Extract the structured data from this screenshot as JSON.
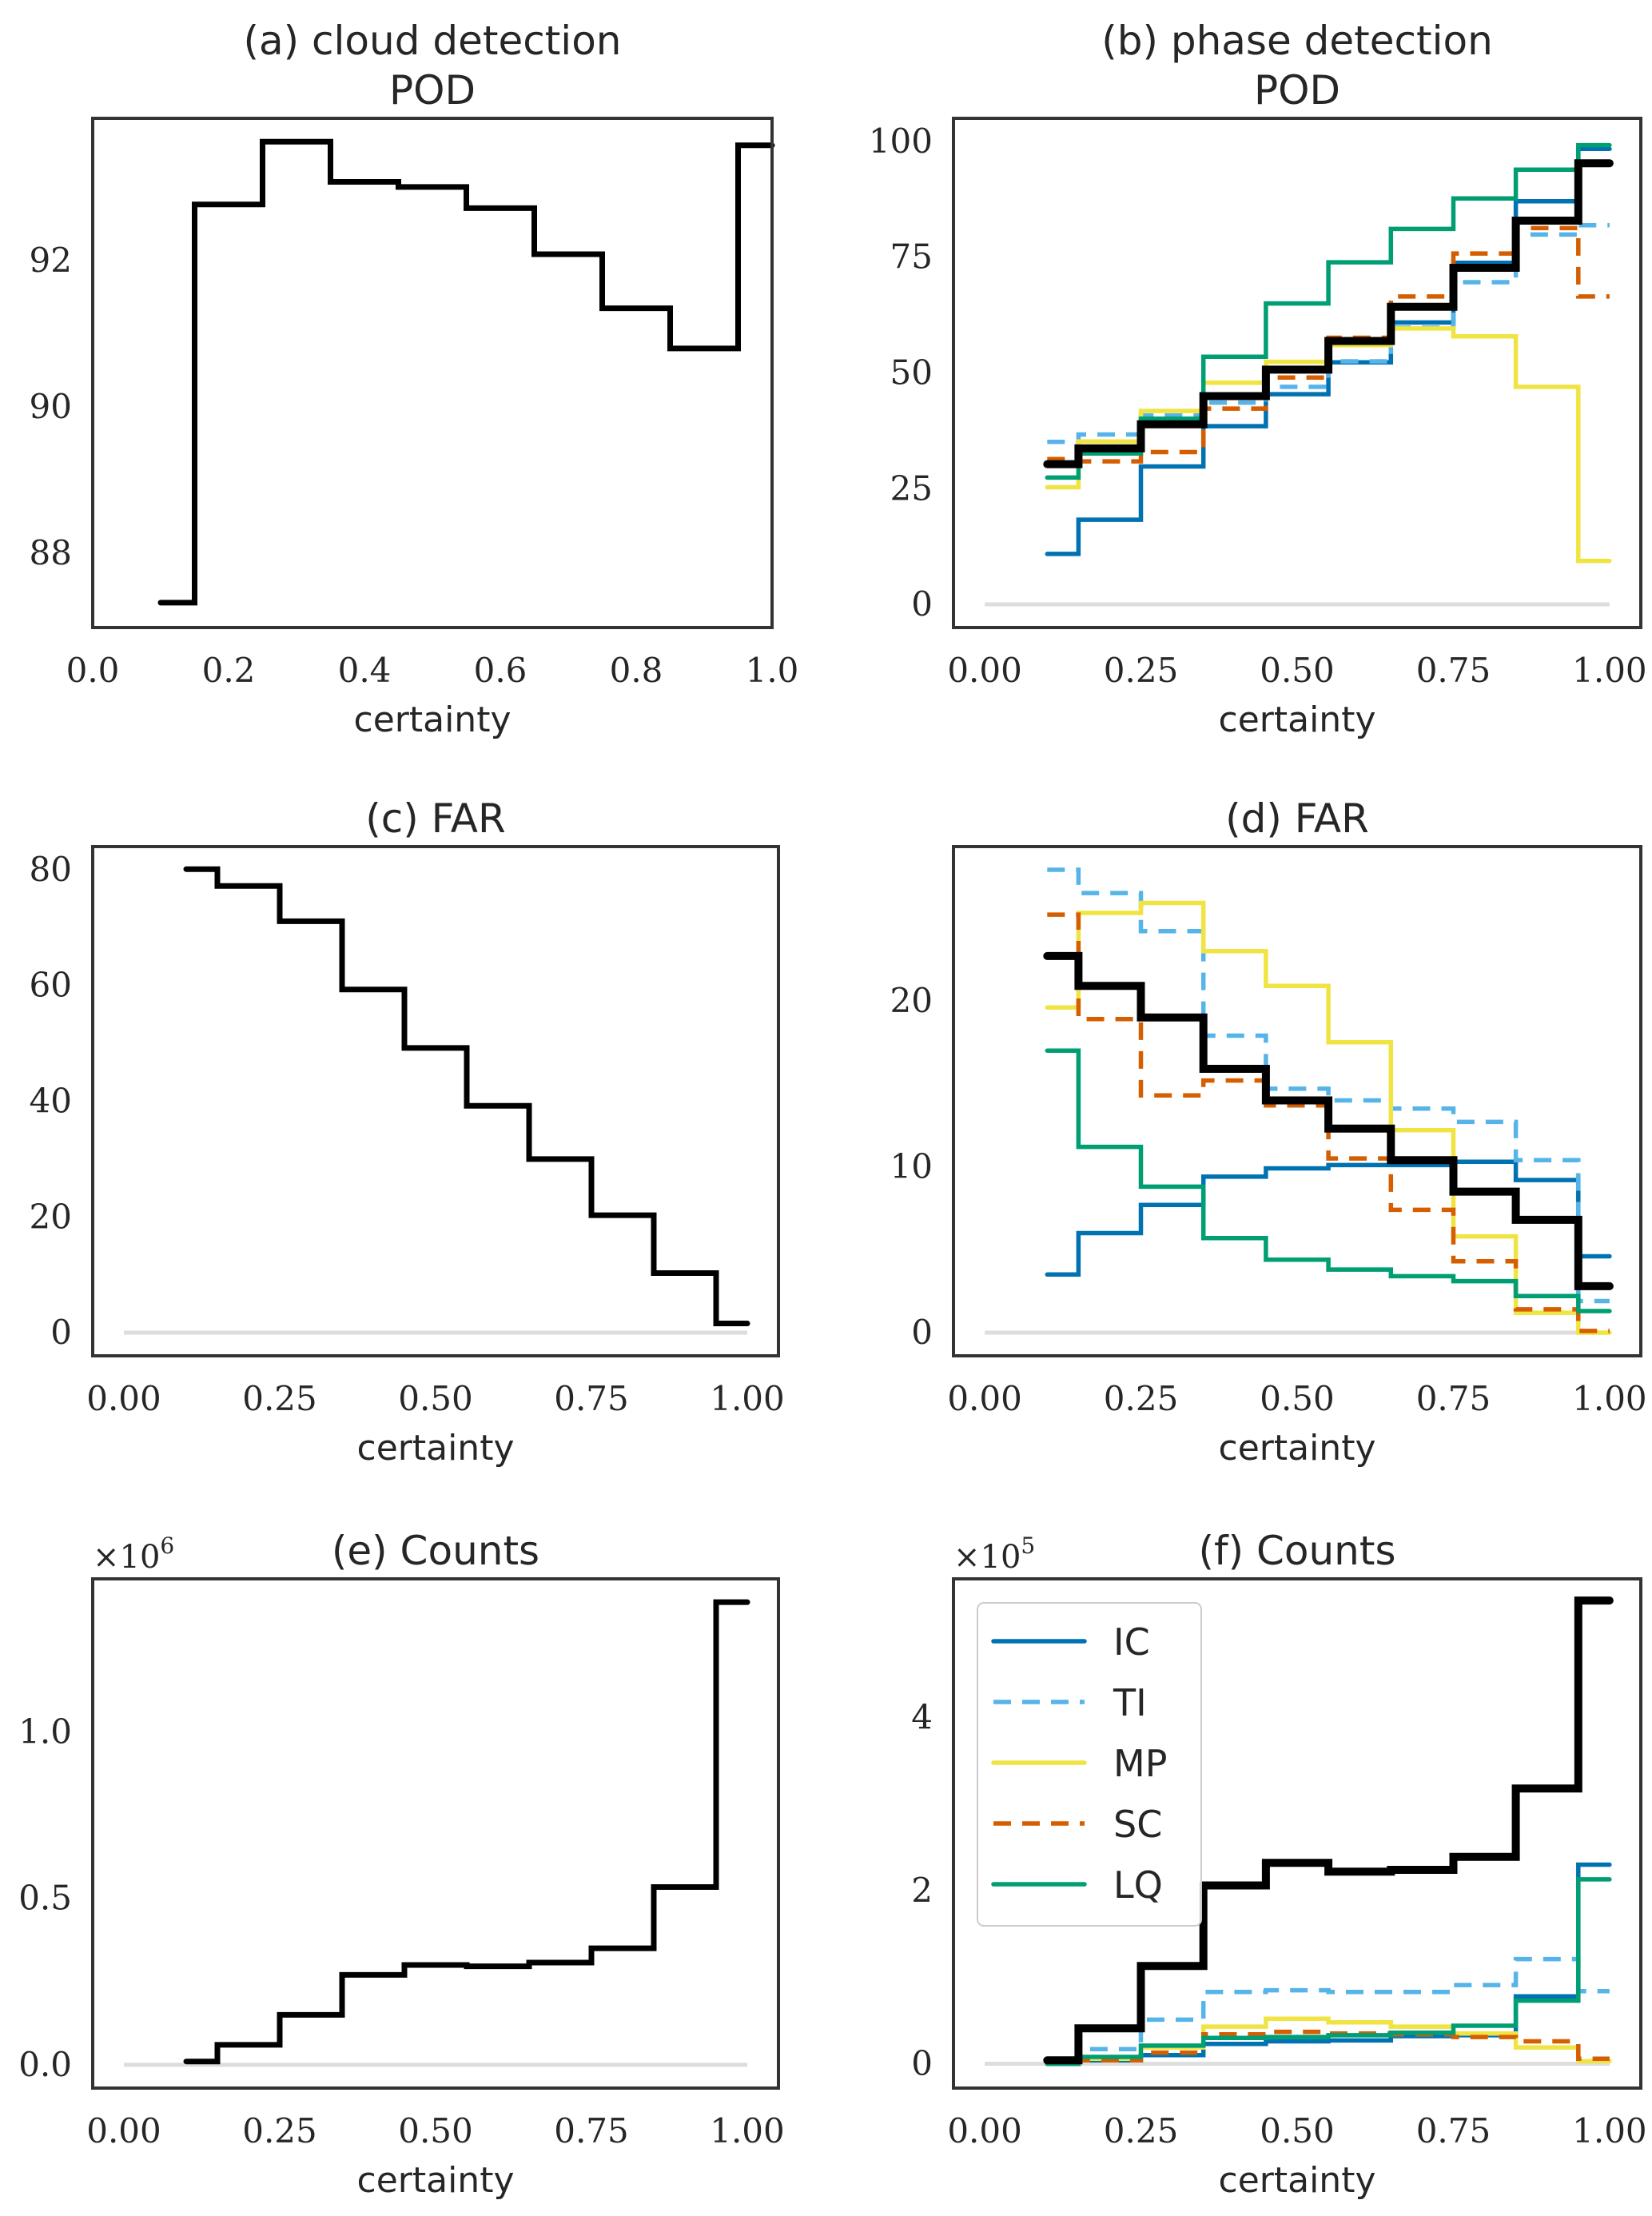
{
  "figure": {
    "x_tick_labels_a": [
      "0.0",
      "0.2",
      "0.4",
      "0.6",
      "0.8",
      "1.0"
    ],
    "x_tick_labels": [
      "0.00",
      "0.25",
      "0.50",
      "0.75",
      "1.00"
    ]
  },
  "series_styles": {
    "All": {
      "color": "#000000",
      "dash": "solid"
    },
    "IC": {
      "color": "#0072B2",
      "dash": "solid"
    },
    "TI": {
      "color": "#56B4E9",
      "dash": "dashed"
    },
    "MP": {
      "color": "#F0E442",
      "dash": "solid"
    },
    "SC": {
      "color": "#D55E00",
      "dash": "dashed"
    },
    "LQ": {
      "color": "#009E73",
      "dash": "solid"
    },
    "zero_line": {
      "color": "#DDDDDD"
    }
  },
  "legend": {
    "placement": "upper-left of panel (f)",
    "entries": [
      "IC",
      "TI",
      "MP",
      "SC",
      "LQ"
    ]
  },
  "chart_data": [
    {
      "id": "a",
      "type": "line",
      "step": "post",
      "title": "(a) cloud detection\nPOD",
      "title_lines": [
        "(a) cloud detection",
        "POD"
      ],
      "xlabel": "certainty",
      "ylabel": "",
      "xlim": [
        0.0,
        1.0
      ],
      "ylim": [
        86.98,
        93.95
      ],
      "xticks": [
        0.0,
        0.2,
        0.4,
        0.6,
        0.8,
        1.0
      ],
      "xtick_labels": [
        "0.0",
        "0.2",
        "0.4",
        "0.6",
        "0.8",
        "1.0"
      ],
      "yticks": [
        88,
        90,
        92
      ],
      "ytick_labels": [
        "88",
        "90",
        "92"
      ],
      "grid": false,
      "zero_line": false,
      "x": [
        0.1,
        0.15,
        0.25,
        0.35,
        0.45,
        0.55,
        0.65,
        0.75,
        0.85,
        0.95,
        1.0
      ],
      "series": [
        {
          "name": "All",
          "values": [
            87.32,
            92.77,
            93.63,
            93.08,
            93.01,
            92.72,
            92.09,
            91.35,
            90.8,
            93.58
          ]
        }
      ]
    },
    {
      "id": "b",
      "type": "line",
      "step": "post",
      "title": "(b) phase detection\nPOD",
      "title_lines": [
        "(b) phase detection",
        "POD"
      ],
      "xlabel": "certainty",
      "ylabel": "",
      "xlim": [
        -0.05,
        1.05
      ],
      "ylim": [
        -5,
        105
      ],
      "xticks": [
        0.0,
        0.25,
        0.5,
        0.75,
        1.0
      ],
      "xtick_labels": [
        "0.00",
        "0.25",
        "0.50",
        "0.75",
        "1.00"
      ],
      "yticks": [
        0,
        25,
        50,
        75,
        100
      ],
      "ytick_labels": [
        "0",
        "25",
        "50",
        "75",
        "100"
      ],
      "grid": false,
      "zero_line": true,
      "x": [
        0.1,
        0.15,
        0.25,
        0.35,
        0.45,
        0.55,
        0.65,
        0.75,
        0.85,
        0.95,
        1.0
      ],
      "series": [
        {
          "name": "IC",
          "values": [
            10.9,
            18.3,
            29.8,
            38.5,
            45.4,
            52.3,
            60.9,
            73.8,
            87.1,
            98.4
          ]
        },
        {
          "name": "TI",
          "values": [
            35.1,
            36.7,
            40.8,
            43.6,
            47.0,
            52.5,
            59.8,
            69.6,
            79.9,
            81.9
          ]
        },
        {
          "name": "MP",
          "values": [
            25.3,
            35.2,
            41.8,
            47.9,
            52.4,
            56.0,
            59.6,
            57.9,
            47.0,
            9.4
          ]
        },
        {
          "name": "SC",
          "values": [
            31.4,
            30.9,
            32.9,
            42.3,
            49.0,
            57.6,
            66.5,
            75.8,
            81.3,
            66.5
          ]
        },
        {
          "name": "LQ",
          "values": [
            27.4,
            32.6,
            40.1,
            53.5,
            65.0,
            73.9,
            81.1,
            87.7,
            93.9,
            99.2
          ]
        },
        {
          "name": "All",
          "values": [
            30.3,
            33.7,
            38.9,
            45.0,
            50.7,
            56.9,
            64.3,
            72.7,
            82.9,
            95.3
          ]
        }
      ]
    },
    {
      "id": "c",
      "type": "line",
      "step": "post",
      "title": "(c) FAR",
      "title_lines": [
        "(c) FAR"
      ],
      "xlabel": "certainty",
      "ylabel": "",
      "xlim": [
        -0.05,
        1.05
      ],
      "ylim": [
        -4,
        84
      ],
      "xticks": [
        0.0,
        0.25,
        0.5,
        0.75,
        1.0
      ],
      "xtick_labels": [
        "0.00",
        "0.25",
        "0.50",
        "0.75",
        "1.00"
      ],
      "yticks": [
        0,
        20,
        40,
        60,
        80
      ],
      "ytick_labels": [
        "0",
        "20",
        "40",
        "60",
        "80"
      ],
      "grid": false,
      "zero_line": true,
      "x": [
        0.1,
        0.15,
        0.25,
        0.35,
        0.45,
        0.55,
        0.65,
        0.75,
        0.85,
        0.95,
        1.0
      ],
      "series": [
        {
          "name": "All",
          "values": [
            80.1,
            77.2,
            71.1,
            59.3,
            49.2,
            39.2,
            30.0,
            20.3,
            10.3,
            1.6
          ]
        }
      ]
    },
    {
      "id": "d",
      "type": "line",
      "step": "post",
      "title": "(d) FAR",
      "title_lines": [
        "(d) FAR"
      ],
      "xlabel": "certainty",
      "ylabel": "",
      "xlim": [
        -0.05,
        1.05
      ],
      "ylim": [
        -1.4,
        29.3
      ],
      "xticks": [
        0.0,
        0.25,
        0.5,
        0.75,
        1.0
      ],
      "xtick_labels": [
        "0.00",
        "0.25",
        "0.50",
        "0.75",
        "1.00"
      ],
      "yticks": [
        0,
        10,
        20
      ],
      "ytick_labels": [
        "0",
        "10",
        "20"
      ],
      "grid": false,
      "zero_line": true,
      "x": [
        0.1,
        0.15,
        0.25,
        0.35,
        0.45,
        0.55,
        0.65,
        0.75,
        0.85,
        0.95,
        1.0
      ],
      "series": [
        {
          "name": "IC",
          "values": [
            3.5,
            6.0,
            7.7,
            9.4,
            9.9,
            10.1,
            10.1,
            10.3,
            9.2,
            4.6
          ]
        },
        {
          "name": "TI",
          "values": [
            27.9,
            26.5,
            24.2,
            17.9,
            14.7,
            14.0,
            13.5,
            12.7,
            10.4,
            1.9
          ]
        },
        {
          "name": "MP",
          "values": [
            19.6,
            25.3,
            25.9,
            23.0,
            20.9,
            17.5,
            12.2,
            5.8,
            1.2,
            0.0
          ]
        },
        {
          "name": "SC",
          "values": [
            25.2,
            18.9,
            14.3,
            15.2,
            13.7,
            10.5,
            7.4,
            4.3,
            1.4,
            0.1
          ]
        },
        {
          "name": "LQ",
          "values": [
            17.0,
            11.2,
            8.8,
            5.7,
            4.4,
            3.8,
            3.4,
            3.1,
            2.2,
            1.3
          ]
        },
        {
          "name": "All",
          "values": [
            22.7,
            20.9,
            19.0,
            15.9,
            14.0,
            12.3,
            10.4,
            8.5,
            6.8,
            2.8
          ]
        }
      ]
    },
    {
      "id": "e",
      "type": "line",
      "step": "post",
      "title": "(e) Counts",
      "title_lines": [
        "(e) Counts"
      ],
      "xlabel": "certainty",
      "ylabel": "",
      "offset_text": "×10^6",
      "offset_base": "×10",
      "offset_exp": "6",
      "xlim": [
        -0.05,
        1.05
      ],
      "ylim": [
        -0.07,
        1.46
      ],
      "xticks": [
        0.0,
        0.25,
        0.5,
        0.75,
        1.0
      ],
      "xtick_labels": [
        "0.00",
        "0.25",
        "0.50",
        "0.75",
        "1.00"
      ],
      "yticks": [
        0.0,
        0.5,
        1.0
      ],
      "ytick_labels": [
        "0.0",
        "0.5",
        "1.0"
      ],
      "grid": false,
      "zero_line": true,
      "x": [
        0.1,
        0.15,
        0.25,
        0.35,
        0.45,
        0.55,
        0.65,
        0.75,
        0.85,
        0.95,
        1.0
      ],
      "series": [
        {
          "name": "All",
          "values": [
            0.01,
            0.06,
            0.15,
            0.27,
            0.3,
            0.296,
            0.307,
            0.35,
            0.534,
            1.39
          ]
        }
      ]
    },
    {
      "id": "f",
      "type": "line",
      "step": "post",
      "title": "(f) Counts",
      "title_lines": [
        "(f) Counts"
      ],
      "xlabel": "certainty",
      "ylabel": "",
      "offset_text": "×10^5",
      "offset_base": "×10",
      "offset_exp": "5",
      "xlim": [
        -0.05,
        1.05
      ],
      "ylim": [
        -0.28,
        5.6
      ],
      "xticks": [
        0.0,
        0.25,
        0.5,
        0.75,
        1.0
      ],
      "xtick_labels": [
        "0.00",
        "0.25",
        "0.50",
        "0.75",
        "1.00"
      ],
      "yticks": [
        0,
        2,
        4
      ],
      "ytick_labels": [
        "0",
        "2",
        "4"
      ],
      "grid": false,
      "zero_line": true,
      "legend": [
        "IC",
        "TI",
        "MP",
        "SC",
        "LQ"
      ],
      "legend_placement": "upper-left",
      "x": [
        0.1,
        0.15,
        0.25,
        0.35,
        0.45,
        0.55,
        0.65,
        0.75,
        0.85,
        0.95,
        1.0
      ],
      "series": [
        {
          "name": "IC",
          "values": [
            0.0,
            0.04,
            0.1,
            0.23,
            0.26,
            0.27,
            0.32,
            0.33,
            0.78,
            2.3
          ]
        },
        {
          "name": "TI",
          "values": [
            0.0,
            0.17,
            0.51,
            0.83,
            0.85,
            0.83,
            0.83,
            0.91,
            1.21,
            0.84
          ]
        },
        {
          "name": "MP",
          "values": [
            0.0,
            0.06,
            0.19,
            0.43,
            0.52,
            0.48,
            0.43,
            0.35,
            0.19,
            0.03
          ]
        },
        {
          "name": "SC",
          "values": [
            0.0,
            0.04,
            0.13,
            0.34,
            0.37,
            0.35,
            0.34,
            0.31,
            0.26,
            0.06
          ]
        },
        {
          "name": "LQ",
          "values": [
            0.0,
            0.08,
            0.21,
            0.3,
            0.31,
            0.33,
            0.36,
            0.44,
            0.73,
            2.13
          ]
        },
        {
          "name": "All",
          "values": [
            0.04,
            0.41,
            1.13,
            2.06,
            2.32,
            2.22,
            2.24,
            2.39,
            3.18,
            5.35
          ]
        }
      ]
    }
  ]
}
